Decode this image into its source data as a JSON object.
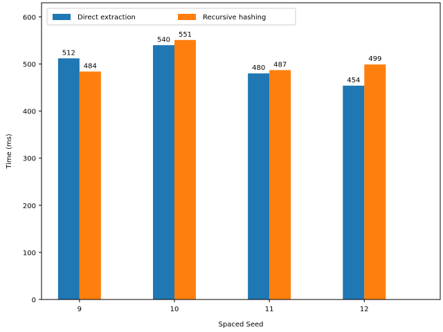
{
  "chart_data": {
    "type": "bar",
    "title": "",
    "xlabel": "Spaced Seed",
    "ylabel": "Time (ms)",
    "categories": [
      "9",
      "10",
      "11",
      "12"
    ],
    "series": [
      {
        "name": "Direct extraction",
        "color": "#1f77b4",
        "values": [
          512,
          540,
          480,
          454
        ]
      },
      {
        "name": "Recursive hashing",
        "color": "#ff7f0e",
        "values": [
          484,
          551,
          487,
          499
        ]
      }
    ],
    "ylim": [
      0,
      630
    ],
    "yticks": [
      0,
      100,
      200,
      300,
      400,
      500,
      600
    ],
    "grid": false,
    "legend_position": "top-left",
    "show_value_labels": true
  }
}
